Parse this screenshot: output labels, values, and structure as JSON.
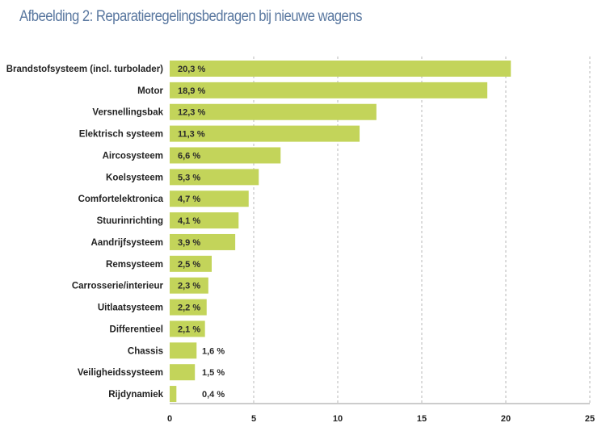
{
  "chart_data": {
    "type": "bar",
    "orientation": "horizontal",
    "title": "Afbeelding 2: Reparatieregelingsbedragen bij nieuwe wagens",
    "categories": [
      "Brandstofsysteem (incl. turbolader)",
      "Motor",
      "Versnellingsbak",
      "Elektrisch systeem",
      "Aircosysteem",
      "Koelsysteem",
      "Comfortelektronica",
      "Stuurinrichting",
      "Aandrijfsysteem",
      "Remsysteem",
      "Carrosserie/interieur",
      "Uitlaatsysteem",
      "Differentieel",
      "Chassis",
      "Veiligheidssysteem",
      "Rijdynamiek"
    ],
    "values": [
      20.3,
      18.9,
      12.3,
      11.3,
      6.6,
      5.3,
      4.7,
      4.1,
      3.9,
      2.5,
      2.3,
      2.2,
      2.1,
      1.6,
      1.5,
      0.4
    ],
    "data_labels": [
      "20,3 %",
      "18,9 %",
      "12,3 %",
      "11,3 %",
      "6,6 %",
      "5,3 %",
      "4,7 %",
      "4,1 %",
      "3,9 %",
      "2,5 %",
      "2,3 %",
      "2,2 %",
      "2,1 %",
      "1,6 %",
      "1,5 %",
      "0,4 %"
    ],
    "xlim": [
      0,
      25
    ],
    "xticks": [
      "0",
      "5",
      "10",
      "15",
      "20",
      "25"
    ],
    "grid": "vertical dashed",
    "xlabel": "",
    "ylabel": "",
    "colors": {
      "bar": "#c3d45a",
      "title": "#5a78a0",
      "grid": "#b8b8b8"
    }
  }
}
